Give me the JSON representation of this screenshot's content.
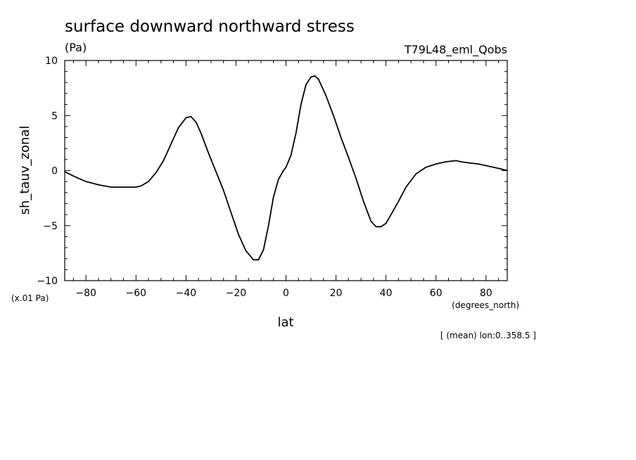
{
  "chart_data": {
    "type": "line",
    "title": "surface downward northward stress",
    "units": "(Pa)",
    "dataset": "T79L48_eml_Qobs",
    "xlabel": "lat",
    "xunits": "(degrees_north)",
    "ylabel": "sh_tauv_zonal",
    "yscale_note": "(x.01 Pa)",
    "footnote": "[ (mean) lon:0..358.5 ]",
    "xlim": [
      -88.5,
      88.5
    ],
    "ylim": [
      -10,
      10
    ],
    "x_ticks": [
      "-80",
      "-60",
      "-40",
      "-20",
      "0",
      "20",
      "40",
      "60",
      "80"
    ],
    "y_ticks": [
      "-10",
      "-5",
      "0",
      "5",
      "10"
    ],
    "grid": false,
    "colors": {
      "line": "#000000",
      "axes": "#000000",
      "background": "#ffffff"
    },
    "series": [
      {
        "x": [
          -88.5,
          -85,
          -80,
          -75,
          -70,
          -65,
          -60,
          -58,
          -55,
          -52,
          -49,
          -46,
          -43,
          -40,
          -38,
          -36,
          -34,
          -31,
          -28,
          -25,
          -22,
          -19,
          -16,
          -13,
          -11,
          -9,
          -7,
          -5,
          -3,
          -1,
          0,
          2,
          4,
          6,
          8,
          10,
          11.5,
          13,
          16,
          19,
          22,
          25,
          28,
          31,
          34,
          36,
          38,
          40,
          42,
          45,
          48,
          52,
          56,
          60,
          64,
          68,
          70,
          73,
          77,
          81,
          85,
          88.5
        ],
        "y": [
          -0.1,
          -0.5,
          -1.0,
          -1.3,
          -1.5,
          -1.5,
          -1.5,
          -1.4,
          -1.0,
          -0.2,
          0.9,
          2.4,
          3.9,
          4.8,
          4.9,
          4.4,
          3.4,
          1.6,
          -0.1,
          -1.8,
          -3.8,
          -5.8,
          -7.3,
          -8.1,
          -8.1,
          -7.2,
          -5.0,
          -2.4,
          -0.8,
          0.0,
          0.3,
          1.4,
          3.4,
          6.0,
          7.8,
          8.5,
          8.6,
          8.3,
          6.8,
          5.0,
          3.0,
          1.2,
          -0.7,
          -2.8,
          -4.6,
          -5.1,
          -5.1,
          -4.8,
          -4.0,
          -2.8,
          -1.5,
          -0.3,
          0.3,
          0.6,
          0.8,
          0.9,
          0.8,
          0.7,
          0.6,
          0.4,
          0.2,
          0.0
        ]
      }
    ]
  }
}
